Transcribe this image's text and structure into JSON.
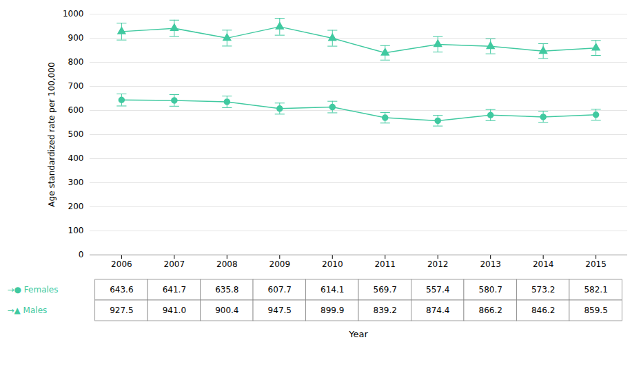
{
  "chart_data": {
    "type": "line",
    "xlabel": "Year",
    "ylabel": "Age standardized rate per 100,000",
    "x": [
      2006,
      2007,
      2008,
      2009,
      2010,
      2011,
      2012,
      2013,
      2014,
      2015
    ],
    "xlim": [
      2005.4,
      2015.6
    ],
    "xticks": [
      2006,
      2007,
      2008,
      2009,
      2010,
      2011,
      2012,
      2013,
      2014,
      2015
    ],
    "ylim": [
      0,
      1000
    ],
    "yticks": [
      0,
      100,
      200,
      300,
      400,
      500,
      600,
      700,
      800,
      900,
      1000
    ],
    "grid": true,
    "data_labels": true,
    "series": [
      {
        "name": "→● Females",
        "color": "#40c9a0",
        "marker": "circle",
        "values": [
          643.6,
          641.7,
          635.8,
          607.7,
          614.1,
          569.7,
          557.4,
          580.7,
          573.2,
          582.1
        ],
        "value_labels": [
          "643.6",
          "641.7",
          "635.8",
          "607.7",
          "614.1",
          "569.7",
          "557.4",
          "580.7",
          "573.2",
          "582.1"
        ],
        "error": [
          25,
          24,
          24,
          23,
          24,
          22,
          22,
          23,
          23,
          23
        ]
      },
      {
        "name": "→▲ Males",
        "color": "#40c9a0",
        "marker": "triangle",
        "values": [
          927.5,
          941.0,
          900.4,
          947.5,
          899.9,
          839.2,
          874.4,
          866.2,
          846.2,
          859.5
        ],
        "value_labels": [
          "927.5",
          "941.0",
          "900.4",
          "947.5",
          "899.9",
          "839.2",
          "874.4",
          "866.2",
          "846.2",
          "859.5"
        ],
        "error": [
          35,
          34,
          33,
          35,
          33,
          30,
          32,
          31,
          31,
          31
        ]
      }
    ]
  }
}
